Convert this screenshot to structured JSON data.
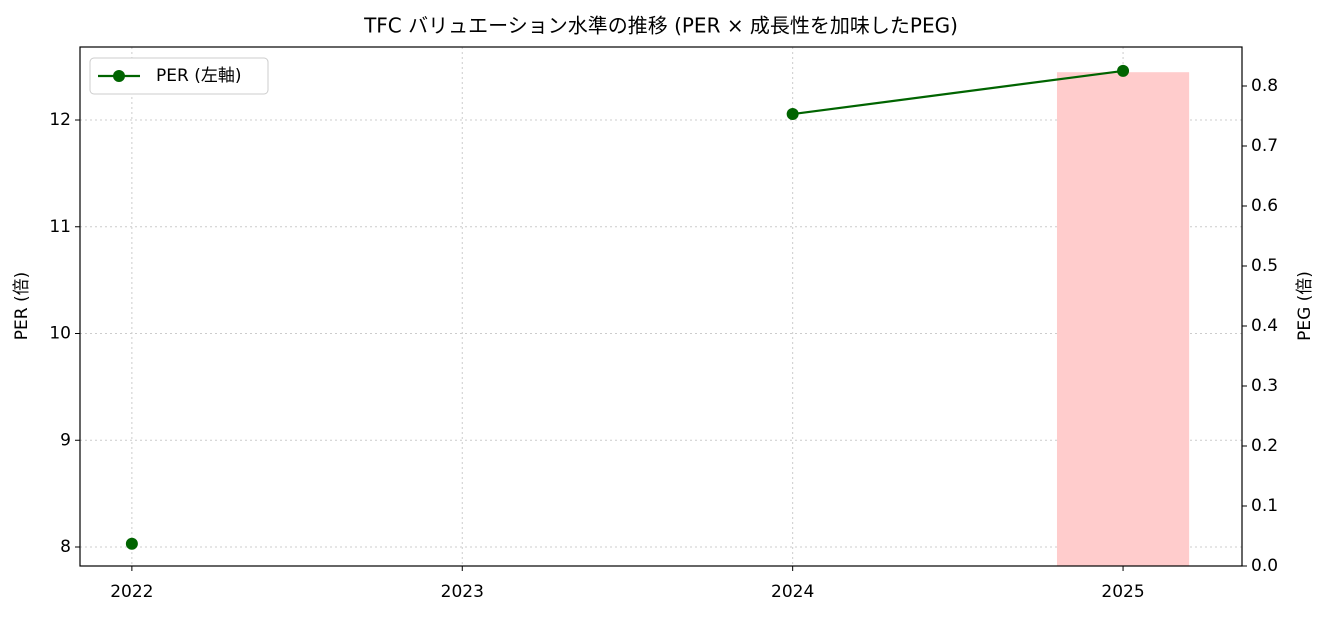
{
  "chart_data": {
    "type": "line",
    "title": "TFC バリュエーション水準の推移 (PER × 成長性を加味したPEG)",
    "ylabel": "PER (倍)",
    "y2label": "PEG (倍)",
    "x": [
      2022,
      2023,
      2024,
      2025
    ],
    "series": [
      {
        "name": "PER (左軸)",
        "type": "line",
        "color": "#006400",
        "values": [
          8.03,
          null,
          12.056,
          12.46
        ]
      },
      {
        "type": "bar",
        "axis": "y2",
        "color": "#ffcccc",
        "values": [
          null,
          null,
          null,
          0.823
        ]
      }
    ],
    "xlim": [
      2021.843,
      2025.36
    ],
    "xticks": [
      2022,
      2023,
      2024,
      2025
    ],
    "ylim": [
      7.822,
      12.684
    ],
    "yticks": [
      8,
      9,
      10,
      11,
      12
    ],
    "y2lim": [
      0,
      0.865
    ],
    "y2ticks": [
      {
        "value": 0,
        "label": "0.0"
      },
      0.1,
      0.2,
      0.3,
      0.4,
      0.5,
      0.6,
      0.7,
      0.8
    ],
    "grid": true,
    "legend": "upper left"
  }
}
